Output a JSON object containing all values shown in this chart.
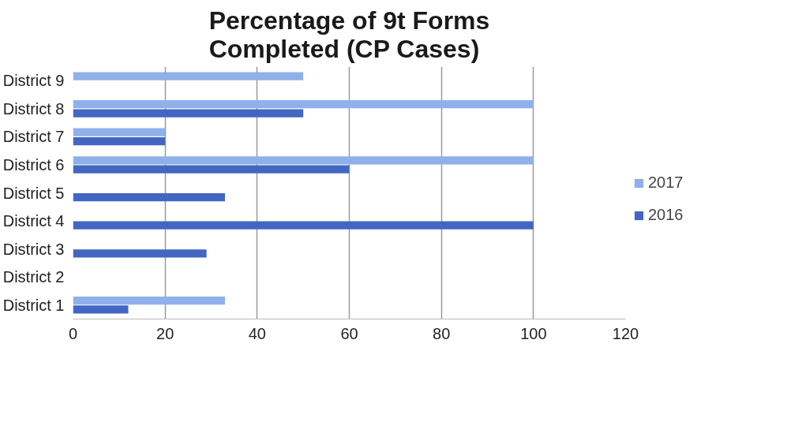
{
  "chart_data": {
    "type": "bar",
    "orientation": "horizontal",
    "title": "Percentage of 9t Forms Completed (CP Cases)",
    "categories": [
      "District 9",
      "District 8",
      "District 7",
      "District 6",
      "District 5",
      "District 4",
      "District 3",
      "District 2",
      "District 1"
    ],
    "series": [
      {
        "name": "2017",
        "color": "#8fb0ea",
        "values": [
          50,
          100,
          20,
          100,
          null,
          null,
          null,
          null,
          33
        ]
      },
      {
        "name": "2016",
        "color": "#4267c2",
        "values": [
          null,
          50,
          20,
          60,
          33,
          100,
          29,
          null,
          12
        ]
      }
    ],
    "xlim": [
      0,
      120
    ],
    "xticks": [
      0,
      20,
      40,
      60,
      80,
      100,
      120
    ],
    "grid": "x",
    "legend": "right"
  }
}
